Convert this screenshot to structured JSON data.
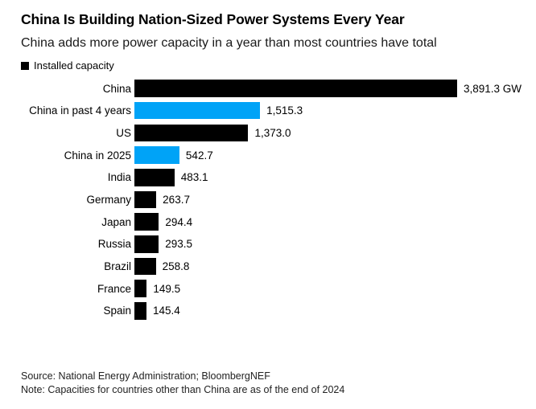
{
  "header": {
    "title": "China Is Building Nation-Sized Power Systems Every Year",
    "subtitle": "China adds more power capacity in a year than most countries have total"
  },
  "legend": {
    "label": "Installed capacity",
    "swatch_color": "#000000"
  },
  "chart_data": {
    "type": "bar",
    "orientation": "horizontal",
    "title": "China Is Building Nation-Sized Power Systems Every Year",
    "xlabel": "",
    "ylabel": "",
    "unit": "GW",
    "xlim": [
      0,
      3891.3
    ],
    "grid": false,
    "legend_position": "top-left",
    "categories": [
      "China",
      "China in past 4 years",
      "US",
      "China in 2025",
      "India",
      "Germany",
      "Japan",
      "Russia",
      "Brazil",
      "France",
      "Spain"
    ],
    "values": [
      3891.3,
      1515.3,
      1373.0,
      542.7,
      483.1,
      263.7,
      294.4,
      293.5,
      258.8,
      149.5,
      145.4
    ],
    "value_labels": [
      "3,891.3 GW",
      "1,515.3",
      "1,373.0",
      "542.7",
      "483.1",
      "263.7",
      "294.4",
      "293.5",
      "258.8",
      "149.5",
      "145.4"
    ],
    "bar_colors": [
      "#000000",
      "#00a3f7",
      "#000000",
      "#00a3f7",
      "#000000",
      "#000000",
      "#000000",
      "#000000",
      "#000000",
      "#000000",
      "#000000"
    ],
    "default_color": "#000000",
    "accent_color": "#00a3f7"
  },
  "footer": {
    "source": "Source: National Energy Administration; BloombergNEF",
    "note": "Note: Capacities for countries other than China are as of the end of 2024"
  }
}
